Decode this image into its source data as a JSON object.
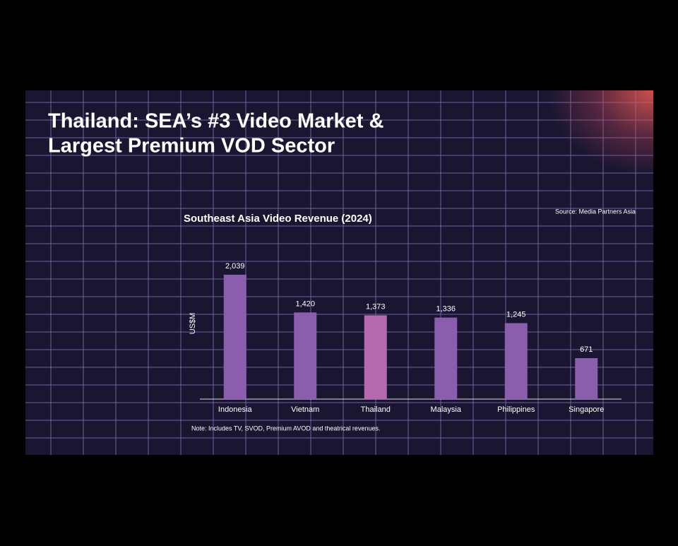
{
  "slide_title": [
    "Thailand: SEA’s #3 Video Market &",
    "Largest Premium VOD Sector"
  ],
  "source": "Source: Media Partners Asia",
  "note": "Note: Includes TV, SVOD, Premium AVOD and theatrical revenues.",
  "chart_data": {
    "type": "bar",
    "title": "Southeast Asia Video Revenue (2024)",
    "y_label": "US$M",
    "categories": [
      "Indonesia",
      "Vietnam",
      "Thailand",
      "Malaysia",
      "Philippines",
      "Singapore"
    ],
    "values": [
      2039,
      1420,
      1373,
      1336,
      1245,
      671
    ],
    "value_labels": [
      "2,039",
      "1,420",
      "1,373",
      "1,336",
      "1,245",
      "671"
    ],
    "colors": [
      "#8b5dad",
      "#8b5dad",
      "#b36aae",
      "#8b5dad",
      "#8b5dad",
      "#8b5dad"
    ],
    "ylim": [
      0,
      2200
    ]
  }
}
